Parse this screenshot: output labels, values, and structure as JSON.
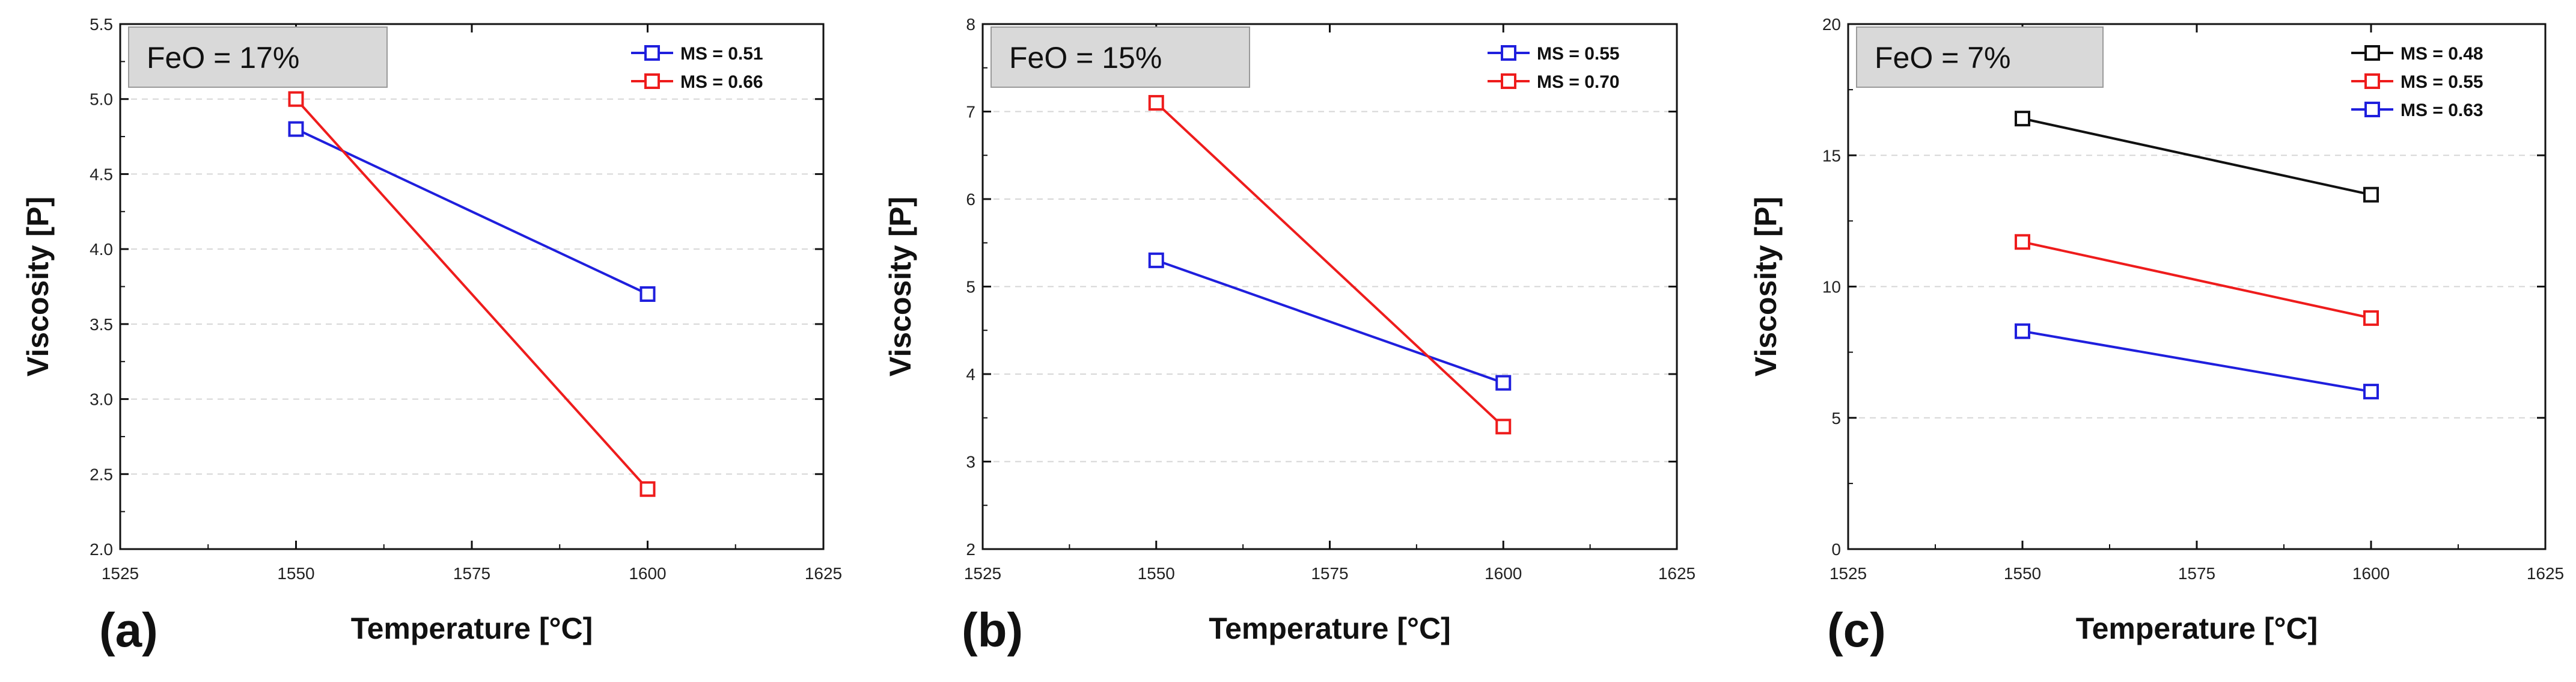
{
  "chart_data": [
    {
      "type": "line",
      "panel_label": "(a)",
      "annotation": "FeO = 17%",
      "xlabel": "Temperature [°C]",
      "ylabel": "Viscosity [P]",
      "xlim": [
        1525,
        1625
      ],
      "xticks": [
        1525,
        1550,
        1575,
        1600,
        1625
      ],
      "ylim": [
        2.0,
        5.5
      ],
      "yticks": [
        "2.0",
        "2.5",
        "3.0",
        "3.5",
        "4.0",
        "4.5",
        "5.0",
        "5.5"
      ],
      "x": [
        1550,
        1600
      ],
      "series": [
        {
          "name": "MS = 0.51",
          "color": "#1f1fdd",
          "values": [
            4.8,
            3.7
          ]
        },
        {
          "name": "MS = 0.66",
          "color": "#ee1c1c",
          "values": [
            5.0,
            2.4
          ]
        }
      ],
      "grid": "horizontal dashed",
      "legend": "top-right"
    },
    {
      "type": "line",
      "panel_label": "(b)",
      "annotation": "FeO = 15%",
      "xlabel": "Temperature [°C]",
      "ylabel": "Viscosity [P]",
      "xlim": [
        1525,
        1625
      ],
      "xticks": [
        1525,
        1550,
        1575,
        1600,
        1625
      ],
      "ylim": [
        2,
        8
      ],
      "yticks": [
        "2",
        "3",
        "4",
        "5",
        "6",
        "7",
        "8"
      ],
      "x": [
        1550,
        1600
      ],
      "series": [
        {
          "name": "MS = 0.55",
          "color": "#1f1fdd",
          "values": [
            5.3,
            3.9
          ]
        },
        {
          "name": "MS = 0.70",
          "color": "#ee1c1c",
          "values": [
            7.1,
            3.4
          ]
        }
      ],
      "grid": "horizontal dashed",
      "legend": "top-right"
    },
    {
      "type": "line",
      "panel_label": "(c)",
      "annotation": "FeO = 7%",
      "xlabel": "Temperature [°C]",
      "ylabel": "Viscosity [P]",
      "xlim": [
        1525,
        1625
      ],
      "xticks": [
        1525,
        1550,
        1575,
        1600,
        1625
      ],
      "ylim": [
        0,
        20
      ],
      "yticks": [
        "0",
        "5",
        "10",
        "15",
        "20"
      ],
      "x": [
        1550,
        1600
      ],
      "series": [
        {
          "name": "MS = 0.48",
          "color": "#111111",
          "values": [
            16.4,
            13.5
          ]
        },
        {
          "name": "MS = 0.55",
          "color": "#ee1c1c",
          "values": [
            11.7,
            8.8
          ]
        },
        {
          "name": "MS = 0.63",
          "color": "#1f1fdd",
          "values": [
            8.3,
            6.0
          ]
        }
      ],
      "grid": "horizontal dashed",
      "legend": "top-right"
    }
  ]
}
